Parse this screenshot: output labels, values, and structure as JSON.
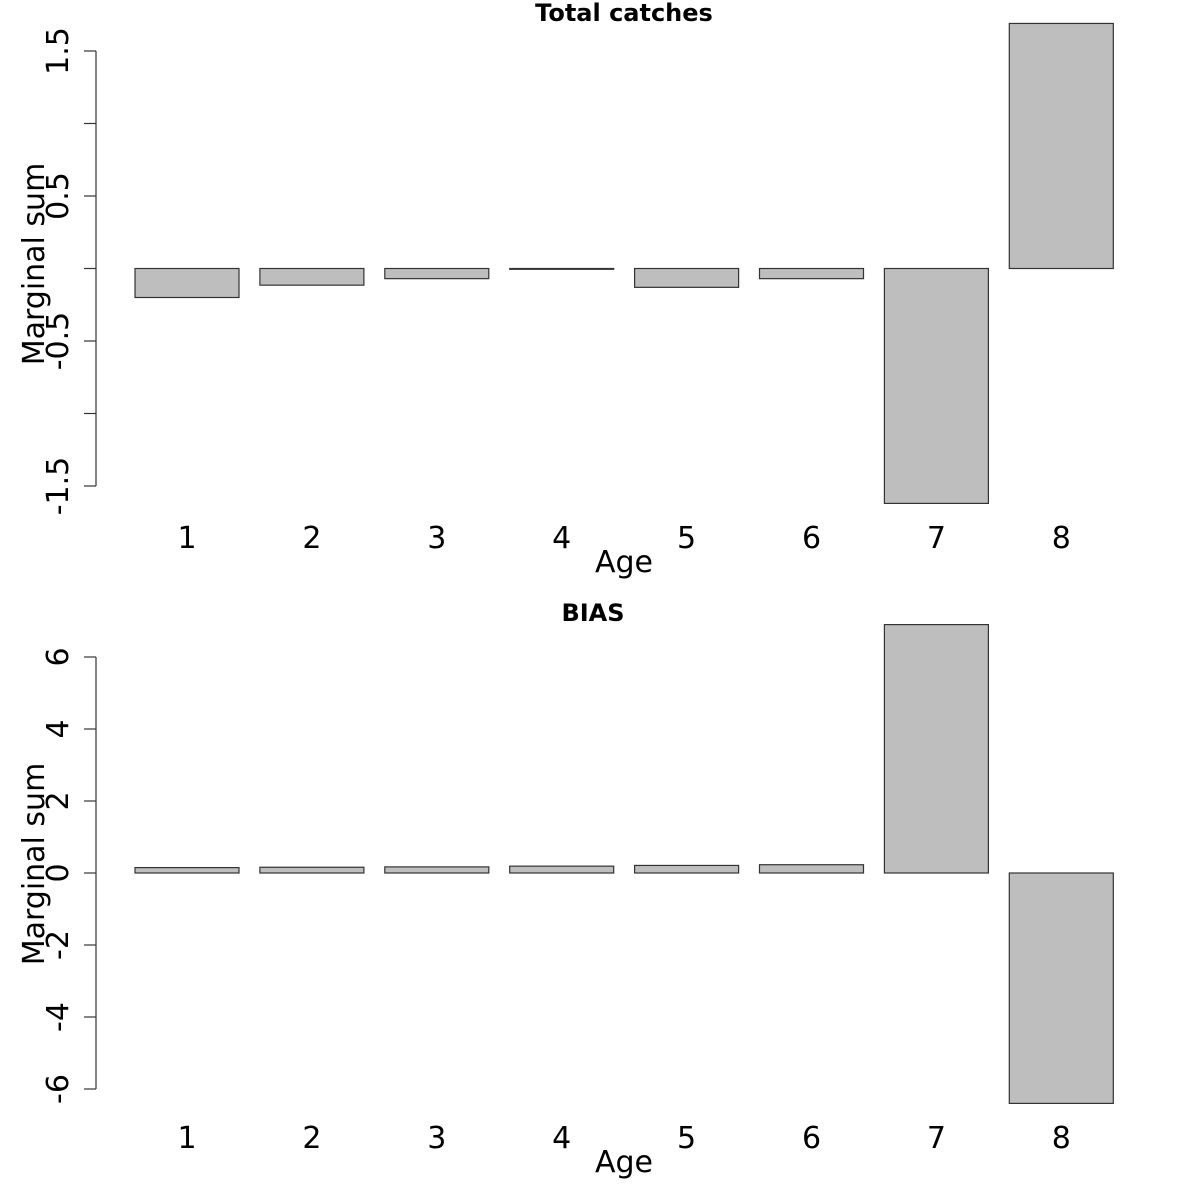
{
  "colors": {
    "bar_fill": "#bebebe",
    "bar_stroke": "#333333",
    "axis": "#333333",
    "text": "#000000",
    "background": "#ffffff"
  },
  "chart_data": [
    {
      "type": "bar",
      "title": "Total catches",
      "xlabel": "Age",
      "ylabel": "Marginal sum",
      "categories": [
        "1",
        "2",
        "3",
        "4",
        "5",
        "6",
        "7",
        "8"
      ],
      "values": [
        -0.2,
        -0.115,
        -0.07,
        -0.005,
        -0.13,
        -0.07,
        -1.62,
        1.69
      ],
      "ylim": [
        -1.5,
        1.5
      ],
      "yticks": [
        -1.5,
        -1.0,
        -0.5,
        0.0,
        0.5,
        1.0,
        1.5
      ],
      "ytick_labels": [
        "-1.5",
        "",
        "-0.5",
        "",
        "0.5",
        "",
        "1.5"
      ],
      "grid": false,
      "legend": "none"
    },
    {
      "type": "bar",
      "title": "BIAS",
      "xlabel": "Age",
      "ylabel": "Marginal sum",
      "categories": [
        "1",
        "2",
        "3",
        "4",
        "5",
        "6",
        "7",
        "8"
      ],
      "values": [
        0.15,
        0.16,
        0.17,
        0.19,
        0.21,
        0.23,
        6.9,
        -6.4
      ],
      "ylim": [
        -6,
        6
      ],
      "yticks": [
        -6,
        -4,
        -2,
        0,
        2,
        4,
        6
      ],
      "ytick_labels": [
        "-6",
        "-4",
        "-2",
        "0",
        "2",
        "4",
        "6"
      ],
      "grid": false,
      "legend": "none"
    }
  ]
}
